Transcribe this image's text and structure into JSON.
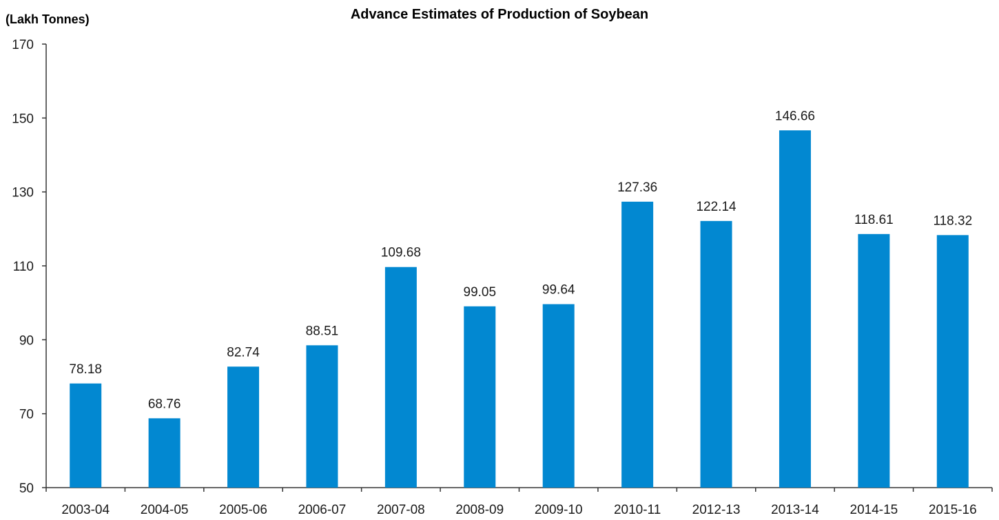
{
  "chart_data": {
    "type": "bar",
    "title": "Advance Estimates of Production of Soybean",
    "ylabel": "(Lakh Tonnes)",
    "xlabel": "",
    "ylim": [
      50,
      170
    ],
    "yticks": [
      50,
      70,
      90,
      110,
      130,
      150,
      170
    ],
    "grid": false,
    "bar_color": "#0288d1",
    "categories": [
      "2003-04",
      "2004-05",
      "2005-06",
      "2006-07",
      "2007-08",
      "2008-09",
      "2009-10",
      "2010-11",
      "2012-13",
      "2013-14",
      "2014-15",
      "2015-16"
    ],
    "values": [
      78.18,
      68.76,
      82.74,
      88.51,
      109.68,
      99.05,
      99.64,
      127.36,
      122.14,
      146.66,
      118.61,
      118.32
    ],
    "data_labels": [
      "78.18",
      "68.76",
      "82.74",
      "88.51",
      "109.68",
      "99.05",
      "99.64",
      "127.36",
      "122.14",
      "146.66",
      "118.61",
      "118.32"
    ]
  }
}
